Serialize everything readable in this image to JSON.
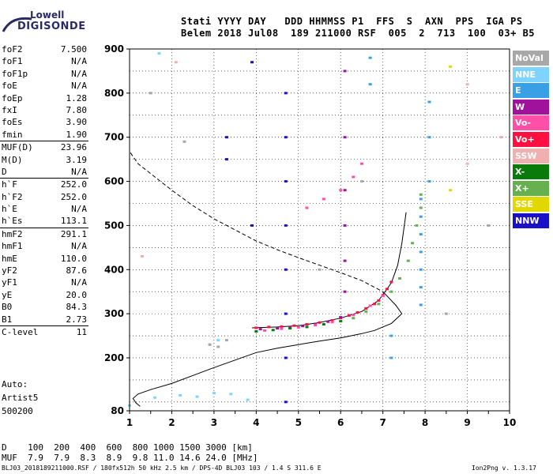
{
  "logo": {
    "top": "Lowell",
    "bottom": "DIGISONDE"
  },
  "header": {
    "line1": "Stati YYYY DAY   DDD HHMMSS P1  FFS  S  AXN  PPS  IGA PS",
    "line2": "Belem 2018 Jul08  189 211000 RSF  005  2  713  100  03+ B5"
  },
  "params": [
    {
      "name": "foF2",
      "value": "7.500",
      "sep": false
    },
    {
      "name": "foF1",
      "value": "N/A",
      "sep": false
    },
    {
      "name": "foF1p",
      "value": "N/A",
      "sep": false
    },
    {
      "name": "foE",
      "value": "N/A",
      "sep": false
    },
    {
      "name": "foEp",
      "value": "1.28",
      "sep": false
    },
    {
      "name": "fxI",
      "value": "7.80",
      "sep": false
    },
    {
      "name": "foEs",
      "value": "3.90",
      "sep": false
    },
    {
      "name": "fmin",
      "value": "1.90",
      "sep": false
    },
    {
      "name": "MUF(D)",
      "value": "23.96",
      "sep": true
    },
    {
      "name": "M(D)",
      "value": "3.19",
      "sep": false
    },
    {
      "name": "D",
      "value": "N/A",
      "sep": false
    },
    {
      "name": "h`F",
      "value": "252.0",
      "sep": true
    },
    {
      "name": "h`F2",
      "value": "252.0",
      "sep": false
    },
    {
      "name": "h`E",
      "value": "N/A",
      "sep": false
    },
    {
      "name": "h`Es",
      "value": "113.1",
      "sep": false
    },
    {
      "name": "hmF2",
      "value": "291.1",
      "sep": true
    },
    {
      "name": "hmF1",
      "value": "N/A",
      "sep": false
    },
    {
      "name": "hmE",
      "value": "110.0",
      "sep": false
    },
    {
      "name": "yF2",
      "value": "87.6",
      "sep": false
    },
    {
      "name": "yF1",
      "value": "N/A",
      "sep": false
    },
    {
      "name": "yE",
      "value": "20.0",
      "sep": false
    },
    {
      "name": "B0",
      "value": "84.3",
      "sep": false
    },
    {
      "name": "B1",
      "value": "2.73",
      "sep": false
    },
    {
      "name": "C-level",
      "value": "11",
      "sep": true
    }
  ],
  "auto": {
    "line1": "Auto:",
    "line2": "Artist5",
    "line3": "500200"
  },
  "legend": [
    {
      "label": "NoVal",
      "color": "#a8a8a8"
    },
    {
      "label": "NNE",
      "color": "#7fd4ff"
    },
    {
      "label": "E",
      "color": "#3aa0e6"
    },
    {
      "label": "W",
      "color": "#a0129c"
    },
    {
      "label": "Vo-",
      "color": "#ff4fa8"
    },
    {
      "label": "Vo+",
      "color": "#ff1040"
    },
    {
      "label": "SSW",
      "color": "#f0b0b0"
    },
    {
      "label": "X-",
      "color": "#0a7a0a"
    },
    {
      "label": "X+",
      "color": "#66b050"
    },
    {
      "label": "SSE",
      "color": "#e0d800"
    },
    {
      "label": "NNW",
      "color": "#1a10c8"
    }
  ],
  "dmuf": {
    "d_line": "D    100  200  400  600  800 1000 1500 3000 [km]",
    "muf_line": "MUF  7.9  7.9  8.3  8.9  9.8 11.0 14.6 24.0 [MHz]"
  },
  "footer": {
    "left": "BLJ03_2018189211000.RSF / 180fx512h 50 kHz 2.5 km / DPS-4D BLJ03 103 / 1.4 S 311.6 E",
    "right": "Ion2Png v. 1.3.17"
  },
  "chart_data": {
    "type": "scatter",
    "xlim": [
      1,
      10
    ],
    "ylim": [
      80,
      900
    ],
    "x_ticks": [
      "1",
      "2",
      "3",
      "4",
      "5",
      "6",
      "7",
      "8",
      "9",
      "10"
    ],
    "y_ticks": [
      "80",
      "200",
      "300",
      "400",
      "500",
      "600",
      "700",
      "800",
      "900"
    ],
    "grid": true,
    "profile_curve": [
      [
        1.02,
        665
      ],
      [
        1.2,
        640
      ],
      [
        1.6,
        610
      ],
      [
        2.0,
        580
      ],
      [
        2.5,
        545
      ],
      [
        3.0,
        515
      ],
      [
        3.5,
        490
      ],
      [
        4.0,
        465
      ],
      [
        4.5,
        445
      ],
      [
        5.0,
        427
      ],
      [
        5.5,
        410
      ],
      [
        6.0,
        393
      ],
      [
        6.5,
        375
      ],
      [
        7.0,
        350
      ],
      [
        7.3,
        320
      ],
      [
        7.45,
        300
      ],
      [
        7.2,
        278
      ],
      [
        6.8,
        262
      ],
      [
        6.5,
        255
      ],
      [
        6.0,
        245
      ],
      [
        5.5,
        238
      ],
      [
        5.0,
        230
      ],
      [
        4.5,
        222
      ],
      [
        4.0,
        212
      ],
      [
        3.5,
        195
      ],
      [
        3.0,
        178
      ],
      [
        2.5,
        160
      ],
      [
        2.0,
        142
      ],
      [
        1.5,
        128
      ],
      [
        1.2,
        118
      ],
      [
        1.08,
        108
      ],
      [
        1.15,
        98
      ],
      [
        1.25,
        90
      ]
    ],
    "trace_curve": [
      [
        3.9,
        268
      ],
      [
        4.5,
        270
      ],
      [
        5.0,
        273
      ],
      [
        5.5,
        280
      ],
      [
        6.0,
        290
      ],
      [
        6.5,
        305
      ],
      [
        6.9,
        330
      ],
      [
        7.2,
        370
      ],
      [
        7.35,
        410
      ],
      [
        7.45,
        460
      ],
      [
        7.55,
        530
      ]
    ],
    "points": [
      {
        "legend": "Vo+",
        "x": [
          4.0,
          4.3,
          4.6,
          4.9,
          5.2,
          5.5,
          5.8,
          6.0,
          6.2,
          6.4,
          6.6,
          6.8,
          6.9,
          7.0,
          7.1,
          7.2
        ],
        "y": [
          268,
          270,
          271,
          273,
          276,
          280,
          285,
          290,
          296,
          303,
          312,
          322,
          330,
          342,
          356,
          372
        ]
      },
      {
        "legend": "W",
        "x": [
          4.1,
          4.5,
          4.8,
          5.1,
          5.4,
          5.7,
          6.0,
          6.1,
          6.1,
          6.1,
          6.1,
          6.1,
          6.1
        ],
        "y": [
          265,
          267,
          270,
          272,
          277,
          282,
          292,
          350,
          420,
          500,
          580,
          700,
          850
        ]
      },
      {
        "legend": "Vo-",
        "x": [
          4.2,
          4.6,
          5.0,
          5.4,
          5.8,
          6.3,
          6.7,
          7.0,
          5.2,
          5.6,
          6.0,
          6.3,
          6.5
        ],
        "y": [
          262,
          266,
          269,
          274,
          281,
          297,
          318,
          340,
          540,
          560,
          580,
          610,
          640
        ]
      },
      {
        "legend": "X+",
        "x": [
          6.3,
          6.6,
          6.9,
          7.2,
          7.4,
          7.6,
          7.7,
          7.8,
          7.9,
          7.9
        ],
        "y": [
          290,
          305,
          322,
          350,
          380,
          420,
          460,
          500,
          540,
          570
        ]
      },
      {
        "legend": "X-",
        "x": [
          4.0,
          4.4,
          4.8,
          5.2,
          5.6,
          6.0
        ],
        "y": [
          260,
          263,
          267,
          270,
          276,
          283
        ]
      },
      {
        "legend": "E",
        "x": [
          7.9,
          7.9,
          7.9,
          7.9,
          7.9,
          7.9,
          7.9,
          8.1,
          8.1,
          8.1,
          7.2,
          7.2,
          6.7,
          6.7
        ],
        "y": [
          320,
          360,
          400,
          440,
          480,
          520,
          560,
          600,
          700,
          780,
          250,
          200,
          820,
          880
        ]
      },
      {
        "legend": "NNE",
        "x": [
          1.0,
          1.6,
          2.2,
          2.6,
          3.0,
          3.4,
          3.8,
          1.7,
          2.9,
          3.1
        ],
        "y": [
          92,
          110,
          115,
          112,
          120,
          118,
          105,
          890,
          230,
          240
        ]
      },
      {
        "legend": "NNW",
        "x": [
          4.7,
          4.7,
          4.7,
          4.7,
          4.7,
          4.7,
          4.7,
          4.7,
          3.3,
          3.3,
          3.9,
          3.9
        ],
        "y": [
          100,
          200,
          300,
          400,
          500,
          600,
          700,
          800,
          700,
          650,
          870,
          500
        ]
      },
      {
        "legend": "NoVal",
        "x": [
          2.9,
          3.1,
          3.3,
          5.5,
          6.5,
          8.5,
          9.5,
          1.5,
          2.3
        ],
        "y": [
          230,
          225,
          240,
          400,
          600,
          300,
          500,
          800,
          690
        ]
      },
      {
        "legend": "SSW",
        "x": [
          9.0,
          9.0,
          9.8,
          1.3,
          2.1
        ],
        "y": [
          640,
          820,
          700,
          430,
          870
        ]
      },
      {
        "legend": "SSE",
        "x": [
          8.6,
          8.6
        ],
        "y": [
          860,
          580
        ]
      }
    ]
  }
}
